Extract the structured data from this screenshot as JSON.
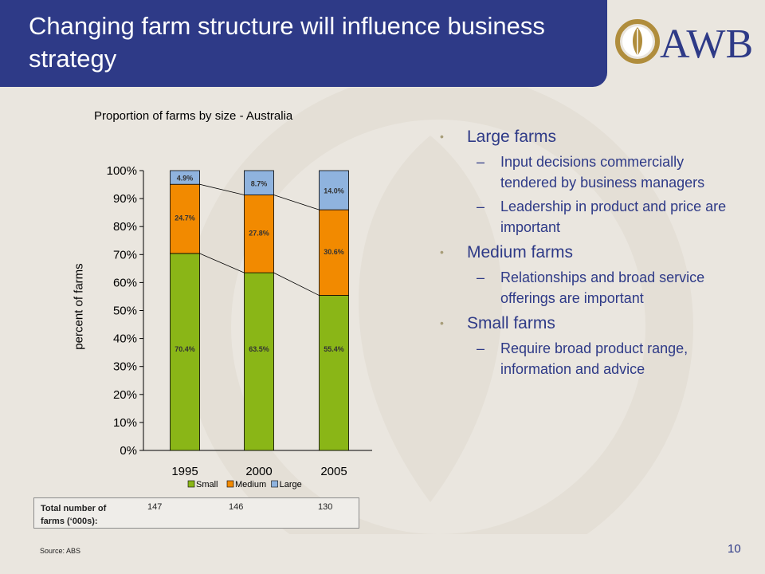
{
  "header": {
    "title": "Changing farm structure will influence business strategy"
  },
  "logo": {
    "text": "AWB",
    "name": "awb-wheat-logo"
  },
  "colors": {
    "header_bg": "#2e3a87",
    "small": "#8ab617",
    "medium": "#f28a00",
    "large": "#8fb3de",
    "text_blue": "#2e3a87"
  },
  "chart_data": {
    "type": "bar",
    "stacked": true,
    "title": "Proportion of farms by size - Australia",
    "ylabel": "percent of farms",
    "xlabel": "",
    "categories": [
      "1995",
      "2000",
      "2005"
    ],
    "ylim": [
      0,
      100
    ],
    "yticks": [
      "0%",
      "10%",
      "20%",
      "30%",
      "40%",
      "50%",
      "60%",
      "70%",
      "80%",
      "90%",
      "100%"
    ],
    "series": [
      {
        "name": "Small",
        "values": [
          70.4,
          63.5,
          55.4
        ],
        "labels": [
          "70.4%",
          "63.5%",
          "55.4%"
        ],
        "color": "#8ab617"
      },
      {
        "name": "Medium",
        "values": [
          24.7,
          27.8,
          30.6
        ],
        "labels": [
          "24.7%",
          "27.8%",
          "30.6%"
        ],
        "color": "#f28a00"
      },
      {
        "name": "Large",
        "values": [
          4.9,
          8.7,
          14.0
        ],
        "labels": [
          "4.9%",
          "8.7%",
          "14.0%"
        ],
        "color": "#8fb3de"
      }
    ],
    "legend": "bottom",
    "grid": false,
    "series_lines": true
  },
  "table": {
    "label": "Total number of farms (‘000s):",
    "values": [
      "147",
      "146",
      "130"
    ]
  },
  "bullets": [
    {
      "text": "Large farms",
      "subs": [
        "Input decisions commercially tendered by business managers",
        "Leadership in product and price are important"
      ]
    },
    {
      "text": "Medium farms",
      "subs": [
        "Relationships and broad service offerings are important"
      ]
    },
    {
      "text": "Small farms",
      "subs": [
        "Require broad product range, information and advice"
      ]
    }
  ],
  "bullet_glyph": "•",
  "sub_glyph": "–",
  "source": "Source: ABS",
  "page_number": "10"
}
